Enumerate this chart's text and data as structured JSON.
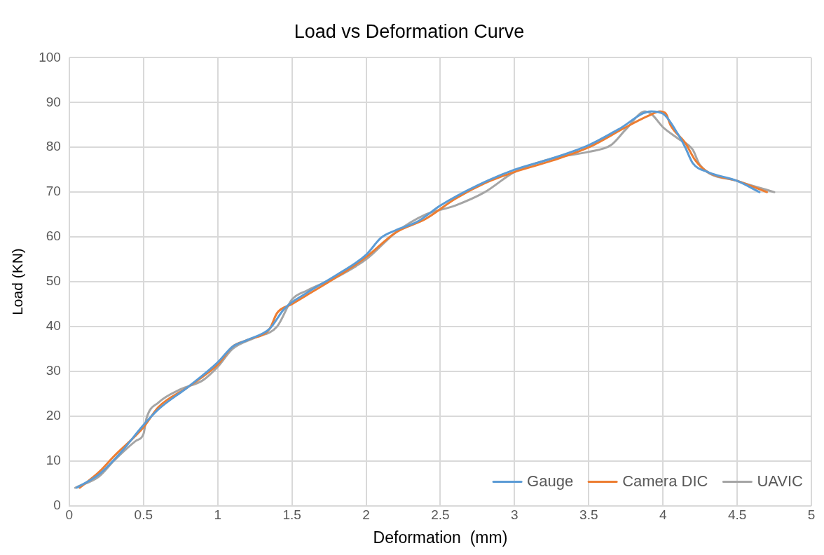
{
  "chart_data": {
    "type": "line",
    "title": "Load vs Deformation Curve",
    "xlabel": "Deformation  (mm)",
    "ylabel": "Load (KN)",
    "xlim": [
      0,
      5
    ],
    "xticks": [
      0,
      0.5,
      1,
      1.5,
      2,
      2.5,
      3,
      3.5,
      4,
      4.5,
      5
    ],
    "ylim": [
      0,
      100
    ],
    "yticks": [
      0,
      10,
      20,
      30,
      40,
      50,
      60,
      70,
      80,
      90,
      100
    ],
    "grid": true,
    "legend": "bottom right",
    "marker": "none",
    "line_style": "solid",
    "series": [
      {
        "name": "Gauge",
        "color": "#5b9bd5",
        "x": [
          0.05,
          0.2,
          0.35,
          0.5,
          0.6,
          0.8,
          1,
          1.1,
          1.2,
          1.35,
          1.45,
          1.6,
          1.8,
          2,
          2.1,
          2.2,
          2.35,
          2.5,
          2.75,
          3,
          3.25,
          3.5,
          3.7,
          3.92,
          4.0,
          4.1,
          4.15,
          4.2,
          4.3,
          4.5,
          4.65
        ],
        "values": [
          4,
          7,
          12,
          18,
          21.5,
          26.5,
          32,
          35.5,
          37,
          39.5,
          44,
          47.5,
          51.5,
          56,
          59.8,
          61.5,
          63.5,
          67,
          71.5,
          75,
          77.5,
          80.5,
          84,
          88,
          87.5,
          83,
          80,
          76.5,
          74.5,
          72.5,
          70
        ]
      },
      {
        "name": "Camera DIC",
        "color": "#ed7d31",
        "x": [
          0.07,
          0.2,
          0.3,
          0.5,
          0.6,
          0.8,
          1,
          1.1,
          1.2,
          1.35,
          1.4,
          1.5,
          1.6,
          1.8,
          2,
          2.2,
          2.4,
          2.6,
          2.8,
          3,
          3.25,
          3.5,
          3.75,
          3.9,
          3.98,
          4.02,
          4.05,
          4.15,
          4.22,
          4.3,
          4.5,
          4.7
        ],
        "values": [
          4,
          7.5,
          11,
          17.5,
          22,
          26.5,
          31.5,
          35.5,
          37,
          39.5,
          43,
          45,
          47,
          51,
          55.5,
          61,
          64,
          68.5,
          72,
          74.5,
          77,
          80,
          84.5,
          87,
          88,
          87.5,
          85,
          81,
          77,
          74.5,
          72.5,
          70
        ]
      },
      {
        "name": "UAVIC",
        "color": "#a5a5a5",
        "x": [
          0.04,
          0.2,
          0.3,
          0.45,
          0.5,
          0.52,
          0.6,
          0.75,
          0.9,
          1,
          1.1,
          1.25,
          1.4,
          1.5,
          1.6,
          1.8,
          2,
          2.2,
          2.4,
          2.6,
          2.8,
          3,
          3.25,
          3.5,
          3.65,
          3.75,
          3.88,
          3.92,
          4,
          4.1,
          4.2,
          4.25,
          4.5,
          4.75
        ],
        "values": [
          4,
          6.5,
          10,
          14.5,
          16,
          19.5,
          23,
          26,
          28,
          31,
          35,
          37.5,
          40,
          46,
          48,
          51,
          55,
          61,
          65,
          67,
          70,
          74.5,
          77.5,
          79,
          80.5,
          84,
          88,
          87.5,
          84.5,
          82,
          79.5,
          76,
          72.5,
          70
        ]
      }
    ]
  }
}
